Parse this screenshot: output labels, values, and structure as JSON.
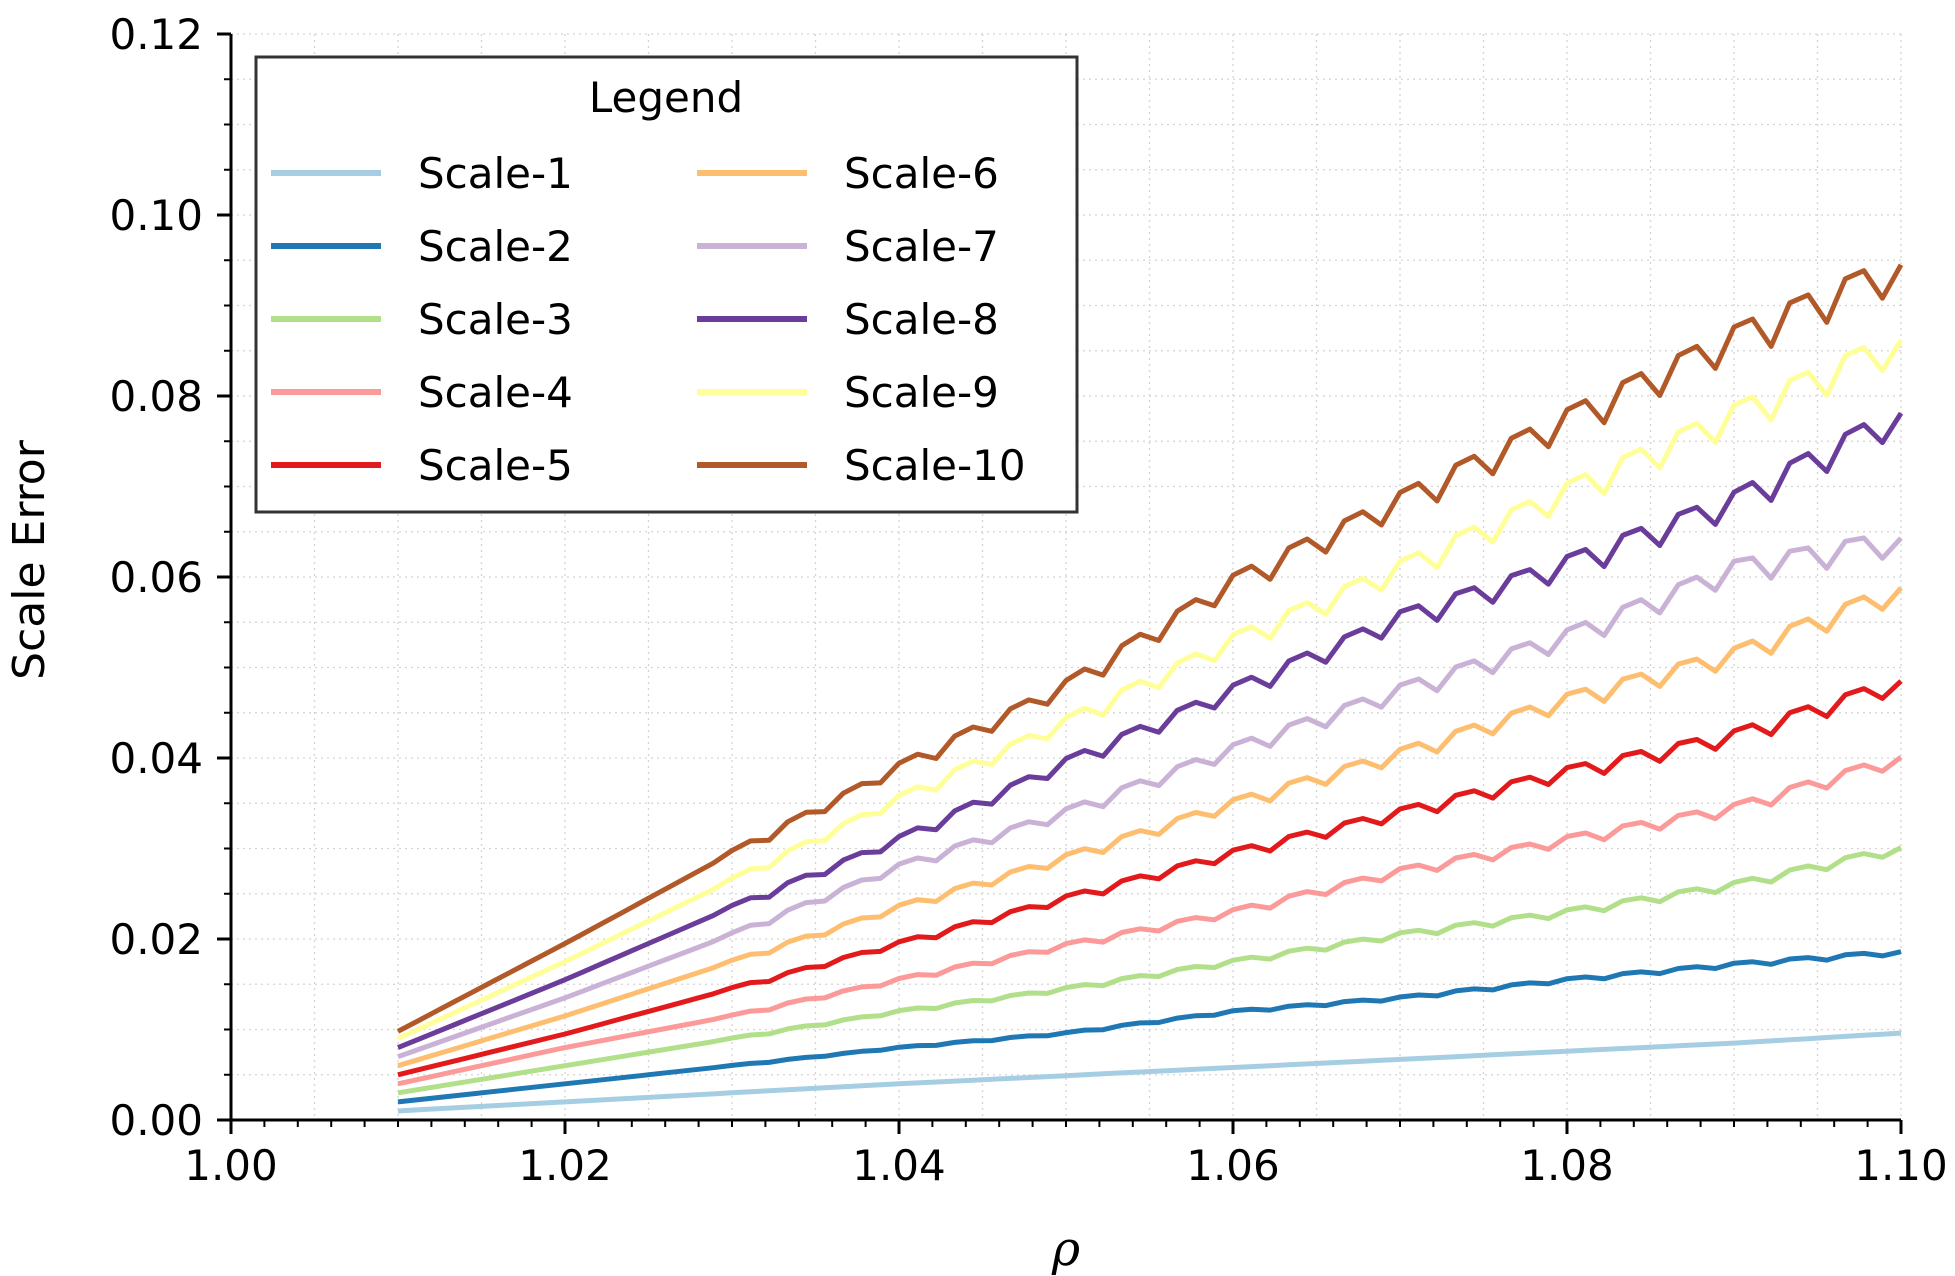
{
  "chart_data": {
    "type": "line",
    "title": "",
    "xlabel": "ρ",
    "ylabel": "Scale Error",
    "xlim": [
      1.0,
      1.1
    ],
    "ylim": [
      0.0,
      0.12
    ],
    "x_ticks": [
      "1.00",
      "1.02",
      "1.04",
      "1.06",
      "1.08",
      "1.10"
    ],
    "y_ticks": [
      "0.00",
      "0.02",
      "0.04",
      "0.06",
      "0.08",
      "0.10",
      "0.12"
    ],
    "grid": "minor dotted",
    "legend": {
      "title": "Legend",
      "placement": "top-left",
      "columns": 2
    },
    "x": [
      1.01,
      1.02,
      1.03,
      1.04,
      1.05,
      1.06,
      1.07,
      1.08,
      1.09,
      1.1
    ],
    "series": [
      {
        "name": "Scale-1",
        "color": "#a6cee3",
        "values": [
          0.001,
          0.002,
          0.003,
          0.004,
          0.0049,
          0.0058,
          0.0067,
          0.0076,
          0.0085,
          0.0096
        ]
      },
      {
        "name": "Scale-2",
        "color": "#1f78b4",
        "values": [
          0.002,
          0.004,
          0.006,
          0.008,
          0.0096,
          0.012,
          0.0135,
          0.0155,
          0.0172,
          0.0186
        ]
      },
      {
        "name": "Scale-3",
        "color": "#b2df8a",
        "values": [
          0.003,
          0.006,
          0.009,
          0.012,
          0.0145,
          0.0175,
          0.0205,
          0.023,
          0.026,
          0.0301
        ]
      },
      {
        "name": "Scale-4",
        "color": "#fb9a99",
        "values": [
          0.004,
          0.008,
          0.0115,
          0.0155,
          0.0193,
          0.023,
          0.0275,
          0.031,
          0.0345,
          0.0401
        ]
      },
      {
        "name": "Scale-5",
        "color": "#e31a1c",
        "values": [
          0.005,
          0.0095,
          0.0145,
          0.0195,
          0.0245,
          0.0295,
          0.034,
          0.0385,
          0.0425,
          0.0485
        ]
      },
      {
        "name": "Scale-6",
        "color": "#fdbf6f",
        "values": [
          0.006,
          0.0115,
          0.0175,
          0.0235,
          0.029,
          0.035,
          0.0405,
          0.0465,
          0.0515,
          0.0588
        ]
      },
      {
        "name": "Scale-7",
        "color": "#cab2d6",
        "values": [
          0.007,
          0.0135,
          0.0205,
          0.028,
          0.034,
          0.041,
          0.0475,
          0.0535,
          0.061,
          0.0643
        ]
      },
      {
        "name": "Scale-8",
        "color": "#6a3d9a",
        "values": [
          0.008,
          0.0155,
          0.0235,
          0.031,
          0.0395,
          0.0475,
          0.0555,
          0.0615,
          0.0685,
          0.0781
        ]
      },
      {
        "name": "Scale-9",
        "color": "#ffff99",
        "values": [
          0.009,
          0.0175,
          0.0265,
          0.0355,
          0.044,
          0.053,
          0.061,
          0.0695,
          0.078,
          0.0862
        ]
      },
      {
        "name": "Scale-10",
        "color": "#b15928",
        "values": [
          0.0098,
          0.0195,
          0.0295,
          0.039,
          0.048,
          0.0595,
          0.0685,
          0.0775,
          0.0865,
          0.0945
        ]
      }
    ]
  }
}
